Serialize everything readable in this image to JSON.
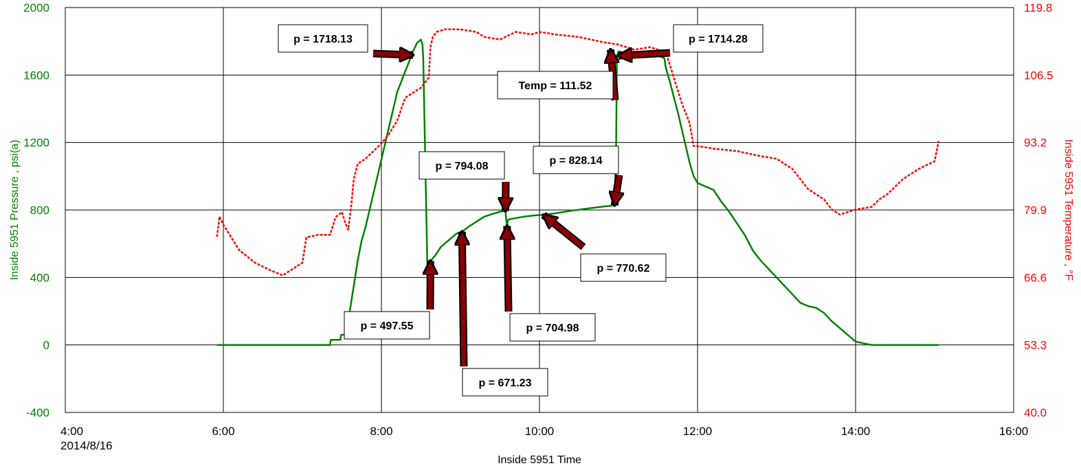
{
  "chart_data": {
    "type": "line",
    "xlabel": "Inside 5951 Time",
    "ylabel_left": "Inside 5951 Pressure , psi(a)",
    "ylabel_right": "Inside 5951 Temperature , °F",
    "date_label": "2014/8/16",
    "x_ticks": [
      "4:00",
      "6:00",
      "8:00",
      "10:00",
      "12:00",
      "14:00",
      "16:00"
    ],
    "x_tick_hours": [
      4,
      6,
      8,
      10,
      12,
      14,
      16
    ],
    "xlim_hours": [
      4,
      16
    ],
    "y_left_ticks": [
      "-400",
      "0",
      "400",
      "800",
      "1200",
      "1600",
      "2000"
    ],
    "y_left_values": [
      -400,
      0,
      400,
      800,
      1200,
      1600,
      2000
    ],
    "ylim_left": [
      -400,
      2000
    ],
    "y_right_ticks": [
      "40.0",
      "53.3",
      "66.6",
      "79.9",
      "93.2",
      "106.5",
      "119.8"
    ],
    "y_right_values": [
      40.0,
      53.3,
      66.6,
      79.9,
      93.2,
      106.5,
      119.8
    ],
    "ylim_right": [
      40.0,
      119.8
    ],
    "grid": true,
    "colors": {
      "pressure": "#008000",
      "temperature": "#ff0000",
      "arrow": "#8b0000"
    },
    "series": [
      {
        "axis": "left",
        "x_hours": [
          5.92,
          6.5,
          7.0,
          7.35,
          7.36,
          7.48,
          7.49,
          7.58,
          7.6,
          7.65,
          7.7,
          7.75,
          7.8,
          7.85,
          7.9,
          7.95,
          8.0,
          8.05,
          8.1,
          8.15,
          8.2,
          8.25,
          8.3,
          8.35,
          8.4,
          8.45,
          8.5,
          8.52,
          8.53,
          8.55,
          8.58,
          8.62,
          8.68,
          8.75,
          8.85,
          8.95,
          9.02,
          9.1,
          9.2,
          9.3,
          9.4,
          9.5,
          9.57,
          9.58,
          9.59,
          9.6,
          9.62,
          9.7,
          9.8,
          9.9,
          10.0,
          10.05,
          10.2,
          10.4,
          10.6,
          10.8,
          10.95,
          10.97,
          10.98,
          11.0,
          11.1,
          11.2,
          11.35,
          11.5,
          11.58,
          11.6,
          11.65,
          11.7,
          11.75,
          11.8,
          11.85,
          11.9,
          11.95,
          12.0,
          12.05,
          12.1,
          12.2,
          12.3,
          12.4,
          12.5,
          12.6,
          12.7,
          12.8,
          12.9,
          13.0,
          13.1,
          13.2,
          13.3,
          13.4,
          13.5,
          13.6,
          13.7,
          13.8,
          13.9,
          14.0,
          14.2,
          14.5,
          14.8,
          15.0,
          15.05
        ],
        "values": [
          0,
          0,
          0,
          0,
          30,
          30,
          60,
          60,
          200,
          350,
          500,
          620,
          700,
          800,
          900,
          1000,
          1100,
          1200,
          1300,
          1400,
          1500,
          1560,
          1620,
          1680,
          1740,
          1790,
          1810,
          1780,
          1700,
          1200,
          500,
          497,
          530,
          580,
          620,
          660,
          671,
          700,
          730,
          760,
          775,
          790,
          794,
          740,
          705,
          740,
          745,
          752,
          760,
          766,
          770,
          772,
          780,
          795,
          808,
          820,
          828,
          1200,
          1714,
          1740,
          1730,
          1720,
          1714,
          1714,
          1700,
          1640,
          1560,
          1470,
          1380,
          1280,
          1180,
          1080,
          1000,
          960,
          950,
          940,
          920,
          850,
          790,
          720,
          650,
          560,
          500,
          450,
          400,
          350,
          300,
          250,
          230,
          220,
          190,
          140,
          100,
          60,
          20,
          0,
          0,
          0,
          0,
          0
        ]
      },
      {
        "axis": "right",
        "x_hours": [
          5.92,
          5.95,
          6.0,
          6.2,
          6.4,
          6.6,
          6.75,
          6.8,
          6.9,
          7.0,
          7.05,
          7.2,
          7.35,
          7.42,
          7.5,
          7.55,
          7.58,
          7.62,
          7.65,
          7.7,
          7.8,
          7.9,
          8.0,
          8.1,
          8.2,
          8.3,
          8.4,
          8.5,
          8.55,
          8.6,
          8.62,
          8.65,
          8.7,
          8.8,
          9.0,
          9.2,
          9.3,
          9.5,
          9.7,
          9.9,
          10.0,
          10.2,
          10.5,
          10.8,
          11.0,
          11.2,
          11.4,
          11.5,
          11.6,
          11.7,
          11.8,
          11.9,
          11.95,
          12.0,
          12.2,
          12.5,
          12.8,
          13.0,
          13.2,
          13.4,
          13.6,
          13.7,
          13.8,
          14.0,
          14.2,
          14.3,
          14.4,
          14.6,
          14.8,
          15.0,
          15.05
        ],
        "values": [
          74.6,
          78.6,
          77.0,
          72.0,
          69.5,
          68.0,
          67.0,
          67.5,
          68.5,
          69.5,
          74.5,
          75.0,
          75.0,
          78.5,
          79.5,
          77.0,
          76.0,
          81.0,
          86.0,
          89.0,
          90.0,
          91.5,
          93.0,
          95.0,
          97.5,
          102.0,
          103.0,
          104.0,
          105.0,
          106.0,
          112.0,
          114.0,
          115.0,
          115.5,
          115.5,
          115.0,
          114.0,
          113.5,
          115.0,
          114.5,
          115.0,
          114.5,
          114.0,
          113.0,
          112.5,
          111.5,
          112.0,
          111.5,
          111.0,
          106.0,
          101.0,
          97.0,
          92.5,
          92.5,
          92.0,
          91.5,
          90.5,
          90.0,
          88.0,
          84.0,
          82.0,
          80.0,
          79.0,
          80.0,
          80.5,
          82.0,
          83.0,
          86.0,
          88.0,
          89.5,
          93.5
        ]
      }
    ],
    "annotations": [
      {
        "text": "p = 1718.13",
        "x_hours": 8.4,
        "value": 1718.13
      },
      {
        "text": "p = 1714.28",
        "x_hours": 11.0,
        "value": 1714.28
      },
      {
        "text": "Temp = 111.52",
        "x_hours": 10.9,
        "value": 111.52,
        "axis": "right"
      },
      {
        "text": "p = 794.08",
        "x_hours": 9.57,
        "value": 794.08
      },
      {
        "text": "p = 828.14",
        "x_hours": 10.95,
        "value": 828.14
      },
      {
        "text": "p = 497.55",
        "x_hours": 8.62,
        "value": 497.55
      },
      {
        "text": "p = 671.23",
        "x_hours": 9.02,
        "value": 671.23
      },
      {
        "text": "p = 704.98",
        "x_hours": 9.59,
        "value": 704.98
      },
      {
        "text": "p = 770.62",
        "x_hours": 10.05,
        "value": 770.62
      }
    ]
  }
}
